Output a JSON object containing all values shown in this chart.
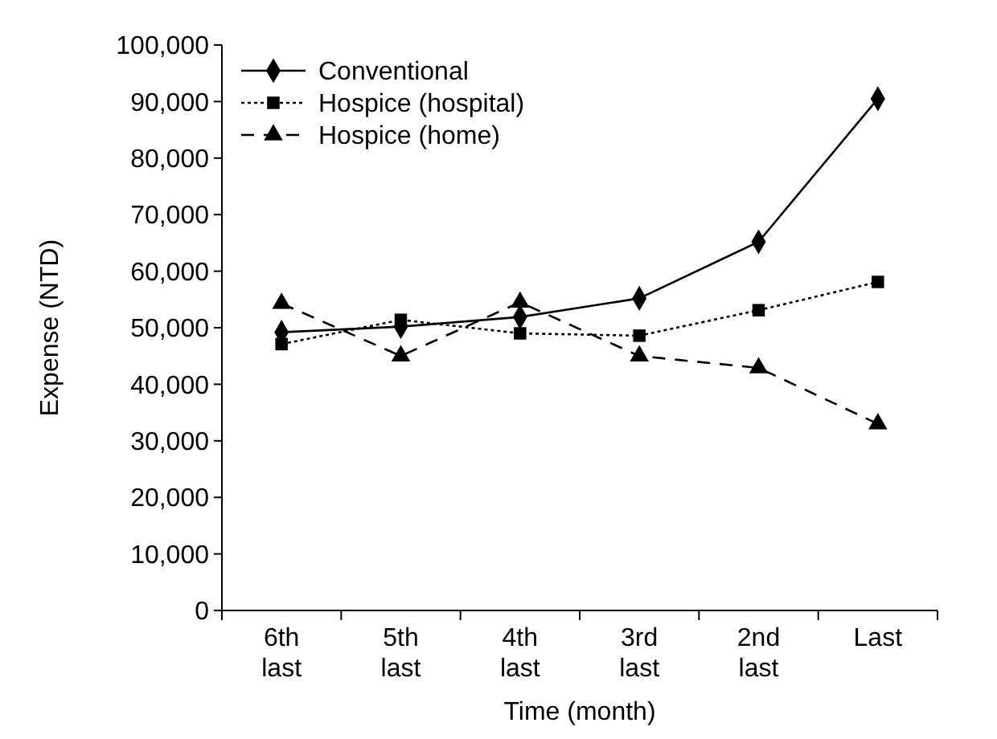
{
  "chart_data": {
    "type": "line",
    "xlabel": "Time (month)",
    "ylabel": "Expense (NTD)",
    "categories": [
      "6th\nlast",
      "5th\nlast",
      "4th\nlast",
      "3rd\nlast",
      "2nd\nlast",
      "Last"
    ],
    "series": [
      {
        "name": "Conventional",
        "color": "#000000",
        "marker": "diamond",
        "line_style": "solid",
        "values": [
          49200,
          50200,
          51900,
          55200,
          65200,
          90500
        ]
      },
      {
        "name": "Hospice (hospital)",
        "color": "#000000",
        "marker": "square",
        "line_style": "dotted",
        "values": [
          47100,
          51400,
          49000,
          48600,
          53100,
          58100
        ]
      },
      {
        "name": "Hospice (home)",
        "color": "#000000",
        "marker": "triangle",
        "line_style": "dashed",
        "values": [
          54300,
          45000,
          54500,
          45000,
          42900,
          33000
        ]
      }
    ],
    "ylim": [
      0,
      100000
    ],
    "yticks": [
      {
        "value": 0,
        "label": "0"
      },
      {
        "value": 10000,
        "label": "10,000"
      },
      {
        "value": 20000,
        "label": "20,000"
      },
      {
        "value": 30000,
        "label": "30,000"
      },
      {
        "value": 40000,
        "label": "40,000"
      },
      {
        "value": 50000,
        "label": "50,000"
      },
      {
        "value": 60000,
        "label": "60,000"
      },
      {
        "value": 70000,
        "label": "70,000"
      },
      {
        "value": 80000,
        "label": "80,000"
      },
      {
        "value": 90000,
        "label": "90,000"
      },
      {
        "value": 100000,
        "label": "100,000"
      }
    ],
    "grid": false,
    "legend": "top left"
  }
}
